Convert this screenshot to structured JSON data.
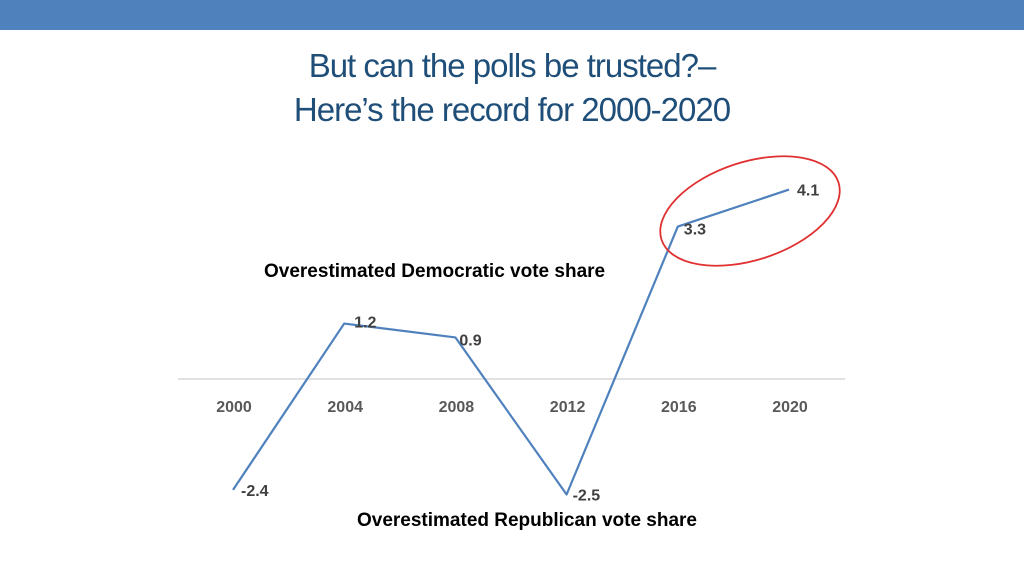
{
  "slide": {
    "title_line1": "But can the polls be trusted?–",
    "title_line2": "Here’s the record for 2000-2020"
  },
  "colors": {
    "header_bar": "#4f81bd",
    "title": "#1f4e79",
    "series_line": "#4f81bd",
    "highlight_ellipse": "#e03030"
  },
  "chart_data": {
    "type": "line",
    "title": "",
    "xlabel": "",
    "ylabel": "",
    "categories": [
      "2000",
      "2004",
      "2008",
      "2012",
      "2016",
      "2020"
    ],
    "series": [
      {
        "values": [
          -2.4,
          1.2,
          0.9,
          -2.5,
          3.3,
          4.1
        ]
      }
    ],
    "data_labels": [
      "-2.4",
      "1.2",
      "0.9",
      "-2.5",
      "3.3",
      "4.1"
    ],
    "ylim": [
      -2.5,
      4.1
    ],
    "grid": false,
    "annotations": {
      "above_axis": "Overestimated Democratic vote share",
      "below_axis": "Overestimated Republican vote share"
    },
    "highlighted_categories": [
      "2016",
      "2020"
    ]
  }
}
